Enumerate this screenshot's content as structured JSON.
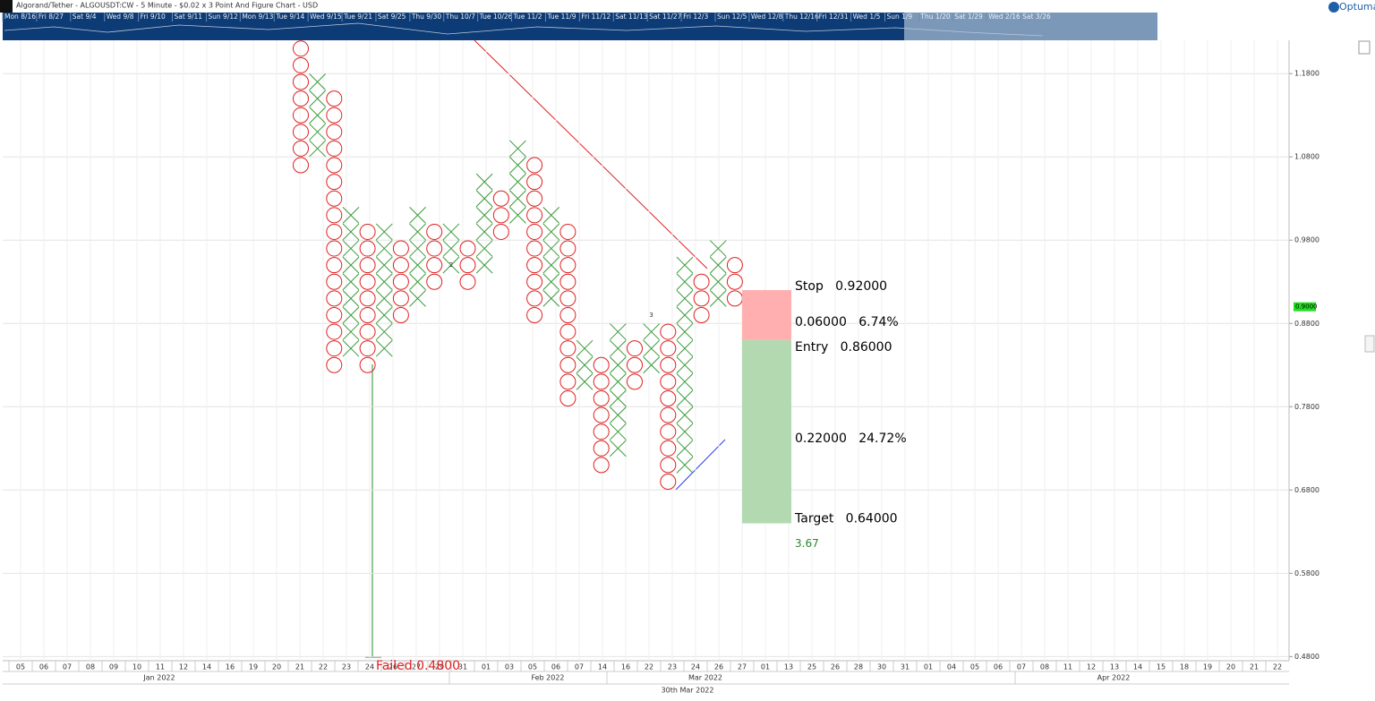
{
  "chart_data": {
    "type": "point_and_figure",
    "title": "Algorand/Tether - ALGOUSDT:CW - 5 Minute - $0.02 x 3 Point And Figure Chart - USD",
    "logo": "Optuma",
    "navigator_labels": [
      "Mon 8/16",
      "Fri 8/27",
      "Sat 9/4",
      "Wed 9/8",
      "Fri 9/10",
      "Sat 9/11",
      "Sun 9/12",
      "Mon 9/13",
      "Tue 9/14",
      "Wed 9/15",
      "Tue 9/21",
      "Sat 9/25",
      "Thu 9/30",
      "Thu 10/7",
      "Tue 10/26",
      "Tue 11/2",
      "Tue 11/9",
      "Fri 11/12",
      "Sat 11/13",
      "Sat 11/27",
      "Fri 12/3",
      "Sun 12/5",
      "Wed 12/8",
      "Thu 12/16",
      "Fri 12/31",
      "Wed 1/5",
      "Sun 1/9",
      "Thu 1/20",
      "Sat 1/29",
      "Wed 2/16",
      "Sat 3/26"
    ],
    "ylim": [
      0.475,
      1.22
    ],
    "yticks": [
      {
        "value": 1.18,
        "label": "1.1800"
      },
      {
        "value": 1.08,
        "label": "1.0800"
      },
      {
        "value": 0.98,
        "label": "0.9800"
      },
      {
        "value": 0.88,
        "label": "0.8800"
      },
      {
        "value": 0.78,
        "label": "0.7800"
      },
      {
        "value": 0.68,
        "label": "0.6800"
      },
      {
        "value": 0.58,
        "label": "0.5800"
      },
      {
        "value": 0.48,
        "label": "0.4800"
      }
    ],
    "grid": true,
    "box_size": 0.02,
    "x_day_labels": [
      "05",
      "06",
      "07",
      "08",
      "09",
      "10",
      "11",
      "12",
      "14",
      "16",
      "19",
      "20",
      "21",
      "22",
      "23",
      "24",
      "26",
      "27",
      "29",
      "31",
      "01",
      "03",
      "05",
      "06",
      "07",
      "14",
      "16",
      "22",
      "23",
      "24",
      "26",
      "27",
      "01",
      "13",
      "25",
      "26",
      "28",
      "30",
      "31",
      "01",
      "04",
      "05",
      "06",
      "07",
      "08",
      "11",
      "12",
      "13",
      "14",
      "15",
      "18",
      "19",
      "20",
      "21",
      "22"
    ],
    "x_month_labels": [
      "Jan 2022",
      "Feb 2022",
      "Mar 2022",
      "Apr 2022"
    ],
    "x_footer": "30th Mar 2022",
    "x_color": "#3a9a3a",
    "o_color": "#e02020",
    "columns": [
      {
        "type": "O",
        "top": 1.21,
        "bottom": 1.07
      },
      {
        "type": "X",
        "top": 1.17,
        "bottom": 1.09
      },
      {
        "type": "O",
        "top": 1.15,
        "bottom": 0.83
      },
      {
        "type": "X",
        "top": 1.01,
        "bottom": 0.85
      },
      {
        "type": "O",
        "top": 0.99,
        "bottom": 0.83
      },
      {
        "type": "X",
        "top": 0.99,
        "bottom": 0.85
      },
      {
        "type": "O",
        "top": 0.97,
        "bottom": 0.89
      },
      {
        "type": "X",
        "top": 1.01,
        "bottom": 0.91
      },
      {
        "type": "O",
        "top": 0.99,
        "bottom": 0.93
      },
      {
        "type": "X",
        "top": 0.99,
        "bottom": 0.95
      },
      {
        "type": "O",
        "top": 0.97,
        "bottom": 0.93
      },
      {
        "type": "X",
        "top": 1.05,
        "bottom": 0.95
      },
      {
        "type": "O",
        "top": 1.03,
        "bottom": 0.99
      },
      {
        "type": "X",
        "top": 1.09,
        "bottom": 1.01
      },
      {
        "type": "O",
        "top": 1.07,
        "bottom": 0.89
      },
      {
        "type": "X",
        "top": 1.01,
        "bottom": 0.91
      },
      {
        "type": "O",
        "top": 0.99,
        "bottom": 0.79
      },
      {
        "type": "X",
        "top": 0.85,
        "bottom": 0.81
      },
      {
        "type": "O",
        "top": 0.83,
        "bottom": 0.71
      },
      {
        "type": "X",
        "top": 0.87,
        "bottom": 0.73
      },
      {
        "type": "O",
        "top": 0.85,
        "bottom": 0.81
      },
      {
        "type": "X",
        "top": 0.87,
        "bottom": 0.83
      },
      {
        "type": "O",
        "top": 0.87,
        "bottom": 0.69
      },
      {
        "type": "X",
        "top": 0.95,
        "bottom": 0.71
      },
      {
        "type": "O",
        "top": 0.93,
        "bottom": 0.89
      },
      {
        "type": "X",
        "top": 0.97,
        "bottom": 0.91
      },
      {
        "type": "O",
        "top": 0.95,
        "bottom": 0.91
      }
    ],
    "markers": [
      "2",
      "3"
    ],
    "failed_label": "Failed 0.4800",
    "last_price": {
      "value": 0.9,
      "label": "0.9000"
    },
    "trade": {
      "stop": 0.92,
      "entry": 0.86,
      "target": 0.64,
      "stop_label": "Stop   0.92000",
      "risk_label": "0.06000   6.74%",
      "entry_label": "Entry   0.86000",
      "reward_label": "0.22000   24.72%",
      "target_label": "Target   0.64000",
      "ratio_label": "3.67"
    }
  }
}
